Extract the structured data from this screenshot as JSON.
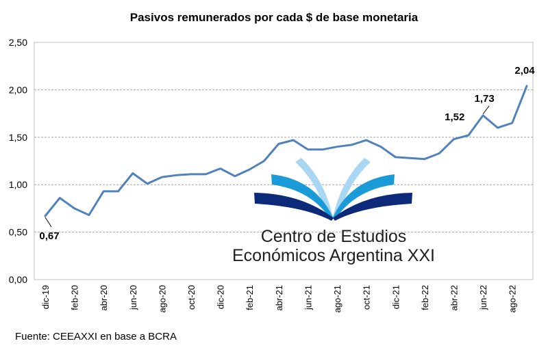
{
  "chart_data": {
    "type": "line",
    "title": "Pasivos remunerados por cada $ de base monetaria",
    "source": "Fuente: CEEAXXI en base a BCRA",
    "ylim": [
      0,
      2.5
    ],
    "yticks": [
      "0,00",
      "0,50",
      "1,00",
      "1,50",
      "2,00",
      "2,50"
    ],
    "ytick_values": [
      0,
      0.5,
      1,
      1.5,
      2,
      2.5
    ],
    "x": [
      "dic-19",
      "ene-20",
      "feb-20",
      "mar-20",
      "abr-20",
      "may-20",
      "jun-20",
      "jul-20",
      "ago-20",
      "sep-20",
      "oct-20",
      "nov-20",
      "dic-20",
      "ene-21",
      "feb-21",
      "mar-21",
      "abr-21",
      "may-21",
      "jun-21",
      "jul-21",
      "ago-21",
      "sep-21",
      "oct-21",
      "nov-21",
      "dic-21",
      "ene-22",
      "feb-22",
      "mar-22",
      "abr-22",
      "may-22",
      "jun-22",
      "jul-22",
      "ago-22",
      "sep-22"
    ],
    "xticks": [
      "dic-19",
      "feb-20",
      "abr-20",
      "jun-20",
      "ago-20",
      "oct-20",
      "dic-20",
      "feb-21",
      "abr-21",
      "jun-21",
      "ago-21",
      "oct-21",
      "dic-21",
      "feb-22",
      "abr-22",
      "jun-22",
      "ago-22"
    ],
    "series": [
      {
        "color": "#4f81bd",
        "values": [
          0.67,
          0.86,
          0.75,
          0.68,
          0.93,
          0.93,
          1.12,
          1.01,
          1.08,
          1.1,
          1.11,
          1.11,
          1.17,
          1.09,
          1.16,
          1.25,
          1.43,
          1.47,
          1.37,
          1.37,
          1.4,
          1.42,
          1.47,
          1.4,
          1.29,
          1.28,
          1.27,
          1.33,
          1.48,
          1.52,
          1.73,
          1.6,
          1.65,
          2.04
        ]
      }
    ],
    "annotations": [
      {
        "index": 0,
        "label": "0,67"
      },
      {
        "index": 29,
        "label": "1,52"
      },
      {
        "index": 30,
        "label": "1,73"
      },
      {
        "index": 33,
        "label": "2,04"
      }
    ],
    "grid": true
  },
  "watermark": {
    "line1": "Centro de Estudios",
    "line2": "Económicos Argentina XXI",
    "colors": [
      "#a9d6f3",
      "#1a9ad6",
      "#0d2a7a"
    ]
  }
}
